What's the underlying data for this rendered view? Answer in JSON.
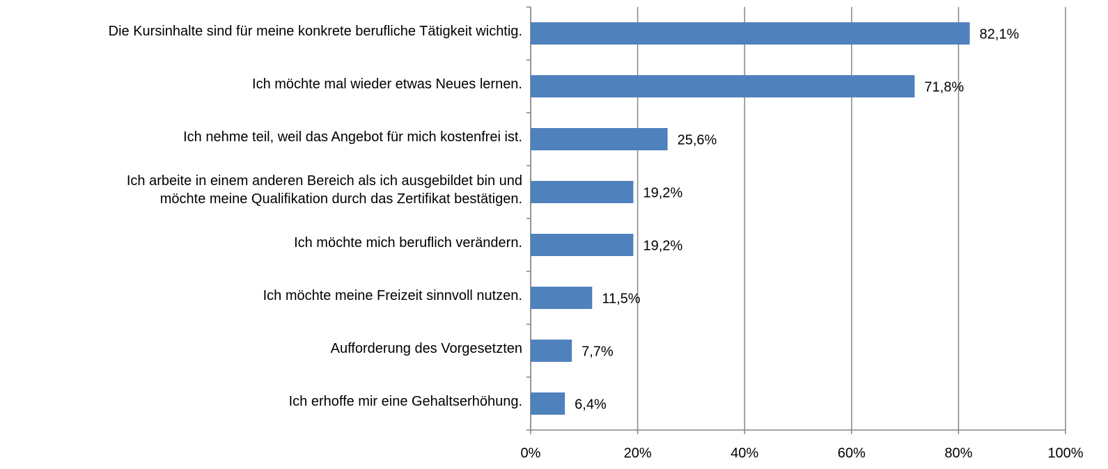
{
  "chart_data": {
    "type": "bar",
    "orientation": "horizontal",
    "categories": [
      "Die Kursinhalte sind für meine konkrete berufliche Tätigkeit wichtig.",
      "Ich möchte mal wieder etwas Neues lernen.",
      "Ich nehme teil, weil das Angebot für mich kostenfrei ist.",
      "Ich arbeite in einem anderen Bereich als ich ausgebildet bin und\nmöchte meine Qualifikation durch das Zertifikat bestätigen.",
      "Ich möchte mich beruflich verändern.",
      "Ich möchte meine Freizeit sinnvoll nutzen.",
      "Aufforderung des Vorgesetzten",
      "Ich erhoffe mir eine Gehaltserhöhung."
    ],
    "values": [
      82.1,
      71.8,
      25.6,
      19.2,
      19.2,
      11.5,
      7.7,
      6.4
    ],
    "value_labels": [
      "82,1%",
      "71,8%",
      "25,6%",
      "19,2%",
      "19,2%",
      "11,5%",
      "7,7%",
      "6,4%"
    ],
    "color": "#4f81bd",
    "xlim": [
      0,
      100
    ],
    "xticks": [
      {
        "value": 0,
        "label": "0%"
      },
      {
        "value": 20,
        "label": "20%"
      },
      {
        "value": 40,
        "label": "40%"
      },
      {
        "value": 60,
        "label": "60%"
      },
      {
        "value": 80,
        "label": "80%"
      },
      {
        "value": 100,
        "label": "100%"
      }
    ],
    "grid": true
  }
}
